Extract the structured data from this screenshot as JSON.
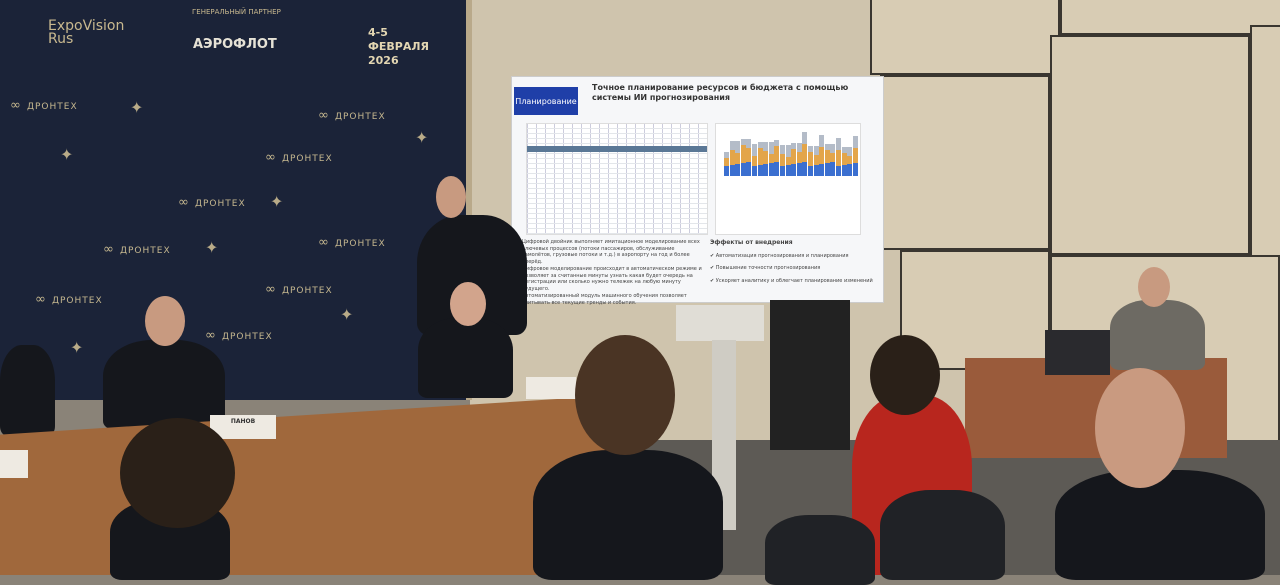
{
  "backdrop": {
    "partner_label": "ГЕНЕРАЛЬНЫЙ ПАРТНЕР",
    "expovision": "ExpoVision Rus",
    "aeroflot": "АЭРОФЛОТ",
    "dates": "4-5 ФЕВРАЛЯ 2026",
    "drontex": "ДРОНТЕХ"
  },
  "slide": {
    "tag": "Планирование",
    "title": "Точное планирование ресурсов и бюджета с помощью системы ИИ прогнозирования",
    "paragraphs": [
      "Цифровой двойник выполняет имитационное моделирование всех ключевых процессов (потоки пассажиров, обслуживание самолётов, грузовые потоки и т.д.) в аэропорту на год и более вперёд.",
      "Цифровое моделирование происходит в автоматическом режиме и позволяет за считанные минуты узнать какая будет очередь на регистрации или сколько нужно тележек на любую минуту будущего.",
      "Автоматизированный модуль машинного обучения позволяет учитывать все текущие тренды и события."
    ],
    "effects_title": "Эффекты от внедрения",
    "effects": [
      "Автоматизация прогнозирования и планирования",
      "Повышение точности прогнозирования",
      "Ускоряет аналитику и облегчает планирование изменений"
    ]
  },
  "nameplates": [
    "ПАНОВ"
  ],
  "colors": {
    "backdrop": "#1b2338",
    "slide_tag": "#1f3fa8",
    "bar_blue": "#3b6fd0",
    "bar_orange": "#e3a54a",
    "bar_gray": "#b4bcc8"
  }
}
